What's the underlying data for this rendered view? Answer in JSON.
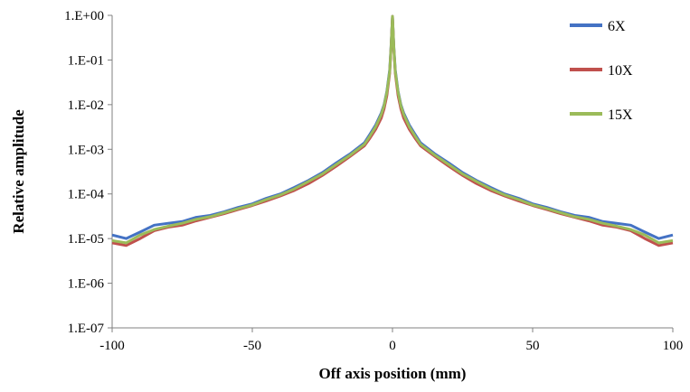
{
  "chart_data": {
    "type": "line",
    "title": "",
    "xlabel": "Off axis position (mm)",
    "ylabel": "Relative amplitude",
    "xlim": [
      -100,
      100
    ],
    "ylim": [
      1e-07,
      1
    ],
    "yscale": "log",
    "grid": false,
    "legend_position": "top-right",
    "x_ticks": [
      -100,
      -50,
      0,
      50,
      100
    ],
    "x_tick_labels": [
      "-100",
      "-50",
      "0",
      "50",
      "100"
    ],
    "y_ticks": [
      1,
      0.1,
      0.01,
      0.001,
      0.0001,
      1e-05,
      1e-06,
      1e-07
    ],
    "y_tick_labels": [
      "1.E+00",
      "1.E-01",
      "1.E-02",
      "1.E-03",
      "1.E-04",
      "1.E-05",
      "1.E-06",
      "1.E-07"
    ],
    "x": [
      -100,
      -95,
      -90,
      -85,
      -80,
      -75,
      -70,
      -65,
      -60,
      -55,
      -50,
      -45,
      -40,
      -35,
      -30,
      -25,
      -20,
      -15,
      -10,
      -8,
      -6,
      -4,
      -3,
      -2,
      -1,
      -0.5,
      0,
      0.5,
      1,
      2,
      3,
      4,
      6,
      8,
      10,
      15,
      20,
      25,
      30,
      35,
      40,
      45,
      50,
      55,
      60,
      65,
      70,
      75,
      80,
      85,
      90,
      95,
      100
    ],
    "series": [
      {
        "name": "6X",
        "color": "#4472c4",
        "values": [
          1.2e-05,
          1e-05,
          1.4e-05,
          2e-05,
          2.2e-05,
          2.4e-05,
          3e-05,
          3.3e-05,
          4e-05,
          5e-05,
          6e-05,
          8e-05,
          0.0001,
          0.00014,
          0.0002,
          0.0003,
          0.0005,
          0.0008,
          0.0014,
          0.0022,
          0.0035,
          0.0065,
          0.01,
          0.02,
          0.06,
          0.2,
          0.95,
          0.2,
          0.06,
          0.02,
          0.01,
          0.0065,
          0.0035,
          0.0022,
          0.0014,
          0.0008,
          0.0005,
          0.0003,
          0.0002,
          0.00014,
          0.0001,
          8e-05,
          6e-05,
          5e-05,
          4e-05,
          3.3e-05,
          3e-05,
          2.4e-05,
          2.2e-05,
          2e-05,
          1.4e-05,
          1e-05,
          1.2e-05
        ]
      },
      {
        "name": "10X",
        "color": "#c0504d",
        "values": [
          8e-06,
          7e-06,
          1e-05,
          1.5e-05,
          1.8e-05,
          2e-05,
          2.5e-05,
          3e-05,
          3.6e-05,
          4.5e-05,
          5.5e-05,
          7e-05,
          9e-05,
          0.00012,
          0.00017,
          0.00026,
          0.00042,
          0.0007,
          0.0012,
          0.0018,
          0.0028,
          0.005,
          0.008,
          0.016,
          0.05,
          0.18,
          0.95,
          0.18,
          0.05,
          0.016,
          0.008,
          0.005,
          0.0028,
          0.0018,
          0.0012,
          0.0007,
          0.00042,
          0.00026,
          0.00017,
          0.00012,
          9e-05,
          7e-05,
          5.5e-05,
          4.5e-05,
          3.6e-05,
          3e-05,
          2.5e-05,
          2e-05,
          1.8e-05,
          1.5e-05,
          1e-05,
          7e-06,
          8e-06
        ]
      },
      {
        "name": "15X",
        "color": "#9bbb59",
        "values": [
          9e-06,
          8e-06,
          1.2e-05,
          1.6e-05,
          1.9e-05,
          2.2e-05,
          2.7e-05,
          3.1e-05,
          3.8e-05,
          4.7e-05,
          5.7e-05,
          7.5e-05,
          9.5e-05,
          0.00013,
          0.00019,
          0.00028,
          0.00046,
          0.00075,
          0.0013,
          0.002,
          0.0032,
          0.006,
          0.0095,
          0.019,
          0.055,
          0.19,
          0.95,
          0.19,
          0.055,
          0.019,
          0.0095,
          0.006,
          0.0032,
          0.002,
          0.0013,
          0.00075,
          0.00046,
          0.00028,
          0.00019,
          0.00013,
          9.5e-05,
          7.5e-05,
          5.7e-05,
          4.7e-05,
          3.8e-05,
          3.1e-05,
          2.7e-05,
          2.2e-05,
          1.9e-05,
          1.6e-05,
          1.2e-05,
          8e-06,
          9e-06
        ]
      }
    ]
  }
}
